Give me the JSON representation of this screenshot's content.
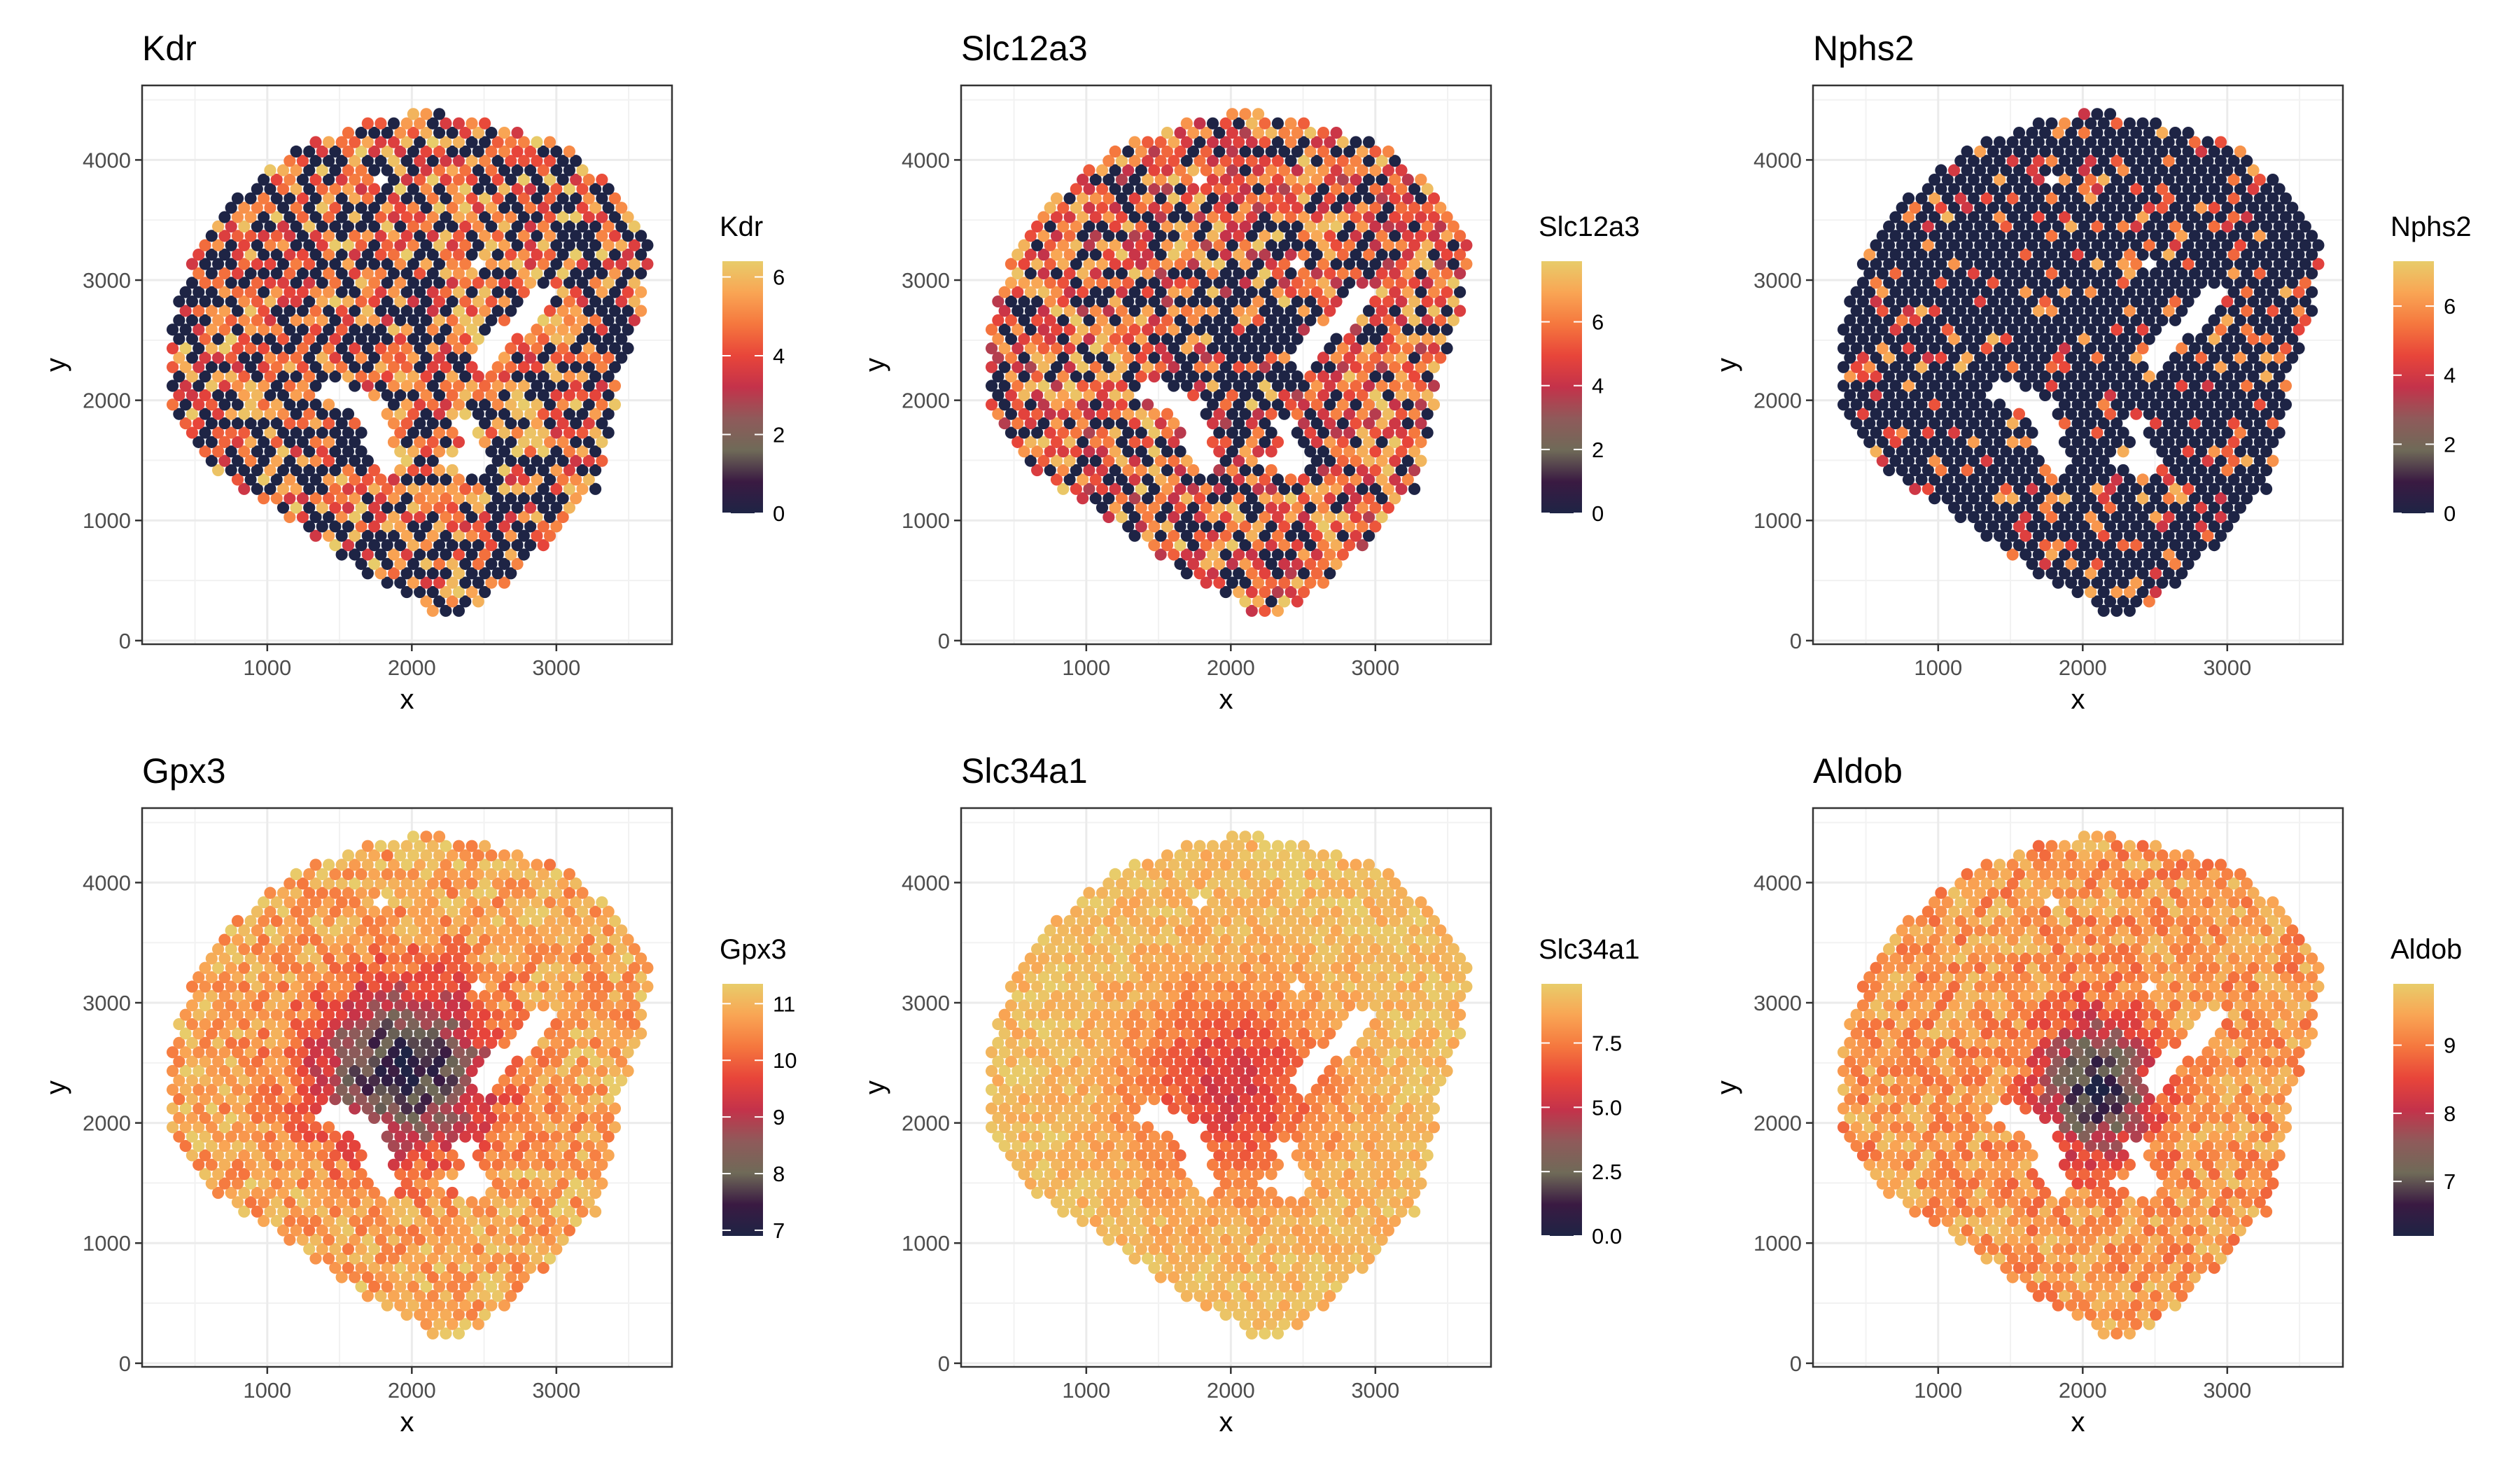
{
  "chart_data": [
    {
      "type": "scatter",
      "title": "Kdr",
      "xlabel": "x",
      "ylabel": "y",
      "legend_title": "Kdr",
      "xlim": [
        134,
        3800
      ],
      "ylim": [
        -30,
        4620
      ],
      "x_ticks": [
        1000,
        2000,
        3000
      ],
      "y_ticks": [
        0,
        1000,
        2000,
        3000,
        4000
      ],
      "color_limits": [
        0,
        6.4
      ],
      "color_ticks": [
        "0",
        "2",
        "4",
        "6"
      ],
      "color_tick_values": [
        0,
        2,
        4,
        6
      ],
      "grid": true,
      "legend_position": "right"
    },
    {
      "type": "scatter",
      "title": "Slc12a3",
      "xlabel": "x",
      "ylabel": "y",
      "legend_title": "Slc12a3",
      "xlim": [
        134,
        3800
      ],
      "ylim": [
        -30,
        4620
      ],
      "x_ticks": [
        1000,
        2000,
        3000
      ],
      "y_ticks": [
        0,
        1000,
        2000,
        3000,
        4000
      ],
      "color_limits": [
        0,
        7.9
      ],
      "color_ticks": [
        "0",
        "2",
        "4",
        "6"
      ],
      "color_tick_values": [
        0,
        2,
        4,
        6
      ],
      "grid": true,
      "legend_position": "right"
    },
    {
      "type": "scatter",
      "title": "Nphs2",
      "xlabel": "x",
      "ylabel": "y",
      "legend_title": "Nphs2",
      "xlim": [
        134,
        3800
      ],
      "ylim": [
        -30,
        4620
      ],
      "x_ticks": [
        1000,
        2000,
        3000
      ],
      "y_ticks": [
        0,
        1000,
        2000,
        3000,
        4000
      ],
      "color_limits": [
        0,
        7.3
      ],
      "color_ticks": [
        "0",
        "2",
        "4",
        "6"
      ],
      "color_tick_values": [
        0,
        2,
        4,
        6
      ],
      "grid": true,
      "legend_position": "right"
    },
    {
      "type": "scatter",
      "title": "Gpx3",
      "xlabel": "x",
      "ylabel": "y",
      "legend_title": "Gpx3",
      "xlim": [
        134,
        3800
      ],
      "ylim": [
        -30,
        4620
      ],
      "x_ticks": [
        1000,
        2000,
        3000
      ],
      "y_ticks": [
        0,
        1000,
        2000,
        3000,
        4000
      ],
      "color_limits": [
        6.9,
        11.35
      ],
      "color_ticks": [
        "7",
        "8",
        "9",
        "10",
        "11"
      ],
      "color_tick_values": [
        7,
        8,
        9,
        10,
        11
      ],
      "grid": true,
      "legend_position": "right"
    },
    {
      "type": "scatter",
      "title": "Slc34a1",
      "xlabel": "x",
      "ylabel": "y",
      "legend_title": "Slc34a1",
      "xlim": [
        134,
        3800
      ],
      "ylim": [
        -30,
        4620
      ],
      "x_ticks": [
        1000,
        2000,
        3000
      ],
      "y_ticks": [
        0,
        1000,
        2000,
        3000,
        4000
      ],
      "color_limits": [
        0,
        9.8
      ],
      "color_ticks": [
        "0.0",
        "2.5",
        "5.0",
        "7.5"
      ],
      "color_tick_values": [
        0,
        2.5,
        5,
        7.5
      ],
      "grid": true,
      "legend_position": "right"
    },
    {
      "type": "scatter",
      "title": "Aldob",
      "xlabel": "x",
      "ylabel": "y",
      "legend_title": "Aldob",
      "xlim": [
        134,
        3800
      ],
      "ylim": [
        -30,
        4620
      ],
      "x_ticks": [
        1000,
        2000,
        3000
      ],
      "y_ticks": [
        0,
        1000,
        2000,
        3000,
        4000
      ],
      "color_limits": [
        6.2,
        9.9
      ],
      "color_ticks": [
        "7",
        "8",
        "9"
      ],
      "color_tick_values": [
        7,
        8,
        9
      ],
      "grid": true,
      "legend_position": "right"
    }
  ],
  "colorscale": [
    "#1e2445",
    "#3a1a42",
    "#6f6a58",
    "#8f5a5a",
    "#c4324a",
    "#e8453a",
    "#f5773e",
    "#f9a554",
    "#e8cc6a"
  ]
}
